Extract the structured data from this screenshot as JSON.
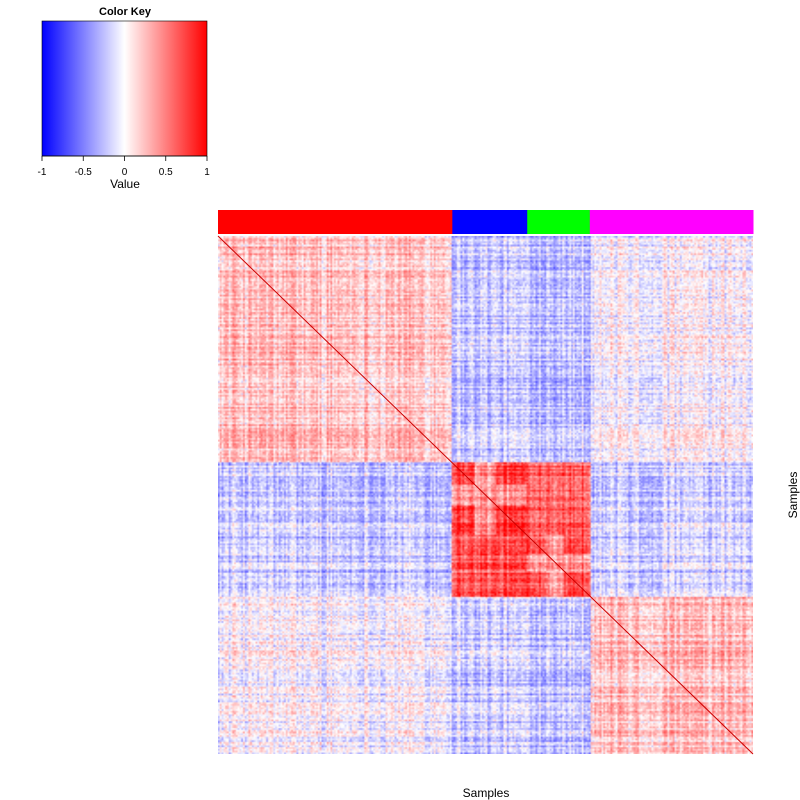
{
  "chart_data": {
    "type": "heatmap",
    "xlabel": "Samples",
    "ylabel": "Samples",
    "color_key": {
      "title": "Color Key",
      "label": "Value",
      "range": [
        -1,
        1
      ],
      "ticks": [
        "-1",
        "-0.5",
        "0",
        "0.5",
        "1"
      ],
      "low_color": "#0000ff",
      "mid_color": "#ffffff",
      "high_color": "#ff0000"
    },
    "groups": [
      {
        "name": "group-red",
        "color": "#ff0000",
        "fraction": 0.438,
        "within": 0.22,
        "bands": []
      },
      {
        "name": "group-blue",
        "color": "#0000ff",
        "fraction": 0.14,
        "within": 0.75,
        "bands": [
          0.3,
          0.58
        ]
      },
      {
        "name": "group-green",
        "color": "#00ff00",
        "fraction": 0.117,
        "within": 0.72,
        "bands": [
          0.3,
          0.58
        ]
      },
      {
        "name": "group-magenta",
        "color": "#ff00ff",
        "fraction": 0.305,
        "within": 0.22,
        "bands": []
      }
    ],
    "between": [
      [
        0,
        -0.22,
        -0.22,
        -0.02
      ],
      [
        -0.22,
        0,
        0.65,
        -0.2
      ],
      [
        -0.22,
        0.65,
        0,
        -0.2
      ],
      [
        -0.02,
        -0.2,
        -0.2,
        0
      ]
    ],
    "diagonal_value": 1
  }
}
